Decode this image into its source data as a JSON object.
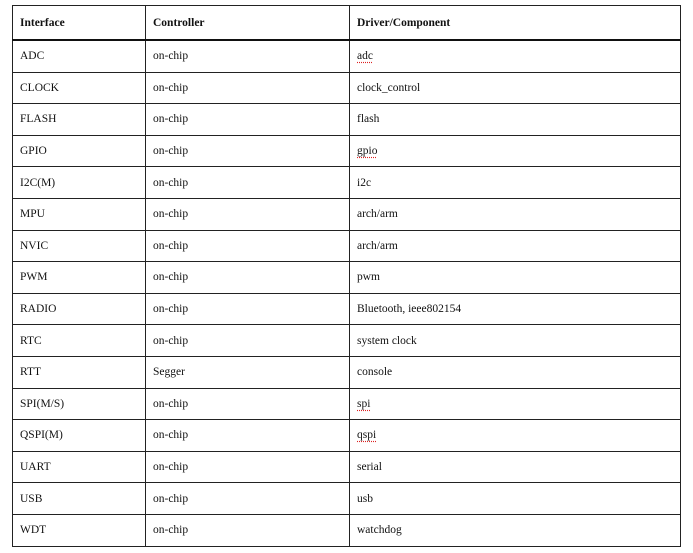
{
  "table": {
    "headers": [
      "Interface",
      "Controller",
      "Driver/Component"
    ],
    "rows": [
      {
        "interface": "ADC",
        "controller": "on-chip",
        "driver": "adc",
        "spell_flag": true
      },
      {
        "interface": "CLOCK",
        "controller": "on-chip",
        "driver": "clock_control",
        "spell_flag": false
      },
      {
        "interface": "FLASH",
        "controller": "on-chip",
        "driver": "flash",
        "spell_flag": false
      },
      {
        "interface": "GPIO",
        "controller": "on-chip",
        "driver": "gpio",
        "spell_flag": true
      },
      {
        "interface": "I2C(M)",
        "controller": "on-chip",
        "driver": "i2c",
        "spell_flag": false
      },
      {
        "interface": "MPU",
        "controller": "on-chip",
        "driver": "arch/arm",
        "spell_flag": false
      },
      {
        "interface": "NVIC",
        "controller": "on-chip",
        "driver": "arch/arm",
        "spell_flag": false
      },
      {
        "interface": "PWM",
        "controller": "on-chip",
        "driver": "pwm",
        "spell_flag": false
      },
      {
        "interface": "RADIO",
        "controller": "on-chip",
        "driver": "Bluetooth, ieee802154",
        "spell_flag": false
      },
      {
        "interface": "RTC",
        "controller": "on-chip",
        "driver": "system clock",
        "spell_flag": false
      },
      {
        "interface": "RTT",
        "controller": "Segger",
        "driver": "console",
        "spell_flag": false
      },
      {
        "interface": "SPI(M/S)",
        "controller": "on-chip",
        "driver": "spi",
        "spell_flag": true
      },
      {
        "interface": "QSPI(M)",
        "controller": "on-chip",
        "driver": "qspi",
        "spell_flag": true
      },
      {
        "interface": "UART",
        "controller": "on-chip",
        "driver": "serial",
        "spell_flag": false
      },
      {
        "interface": "USB",
        "controller": "on-chip",
        "driver": "usb",
        "spell_flag": false
      },
      {
        "interface": "WDT",
        "controller": "on-chip",
        "driver": "watchdog",
        "spell_flag": false
      }
    ]
  }
}
